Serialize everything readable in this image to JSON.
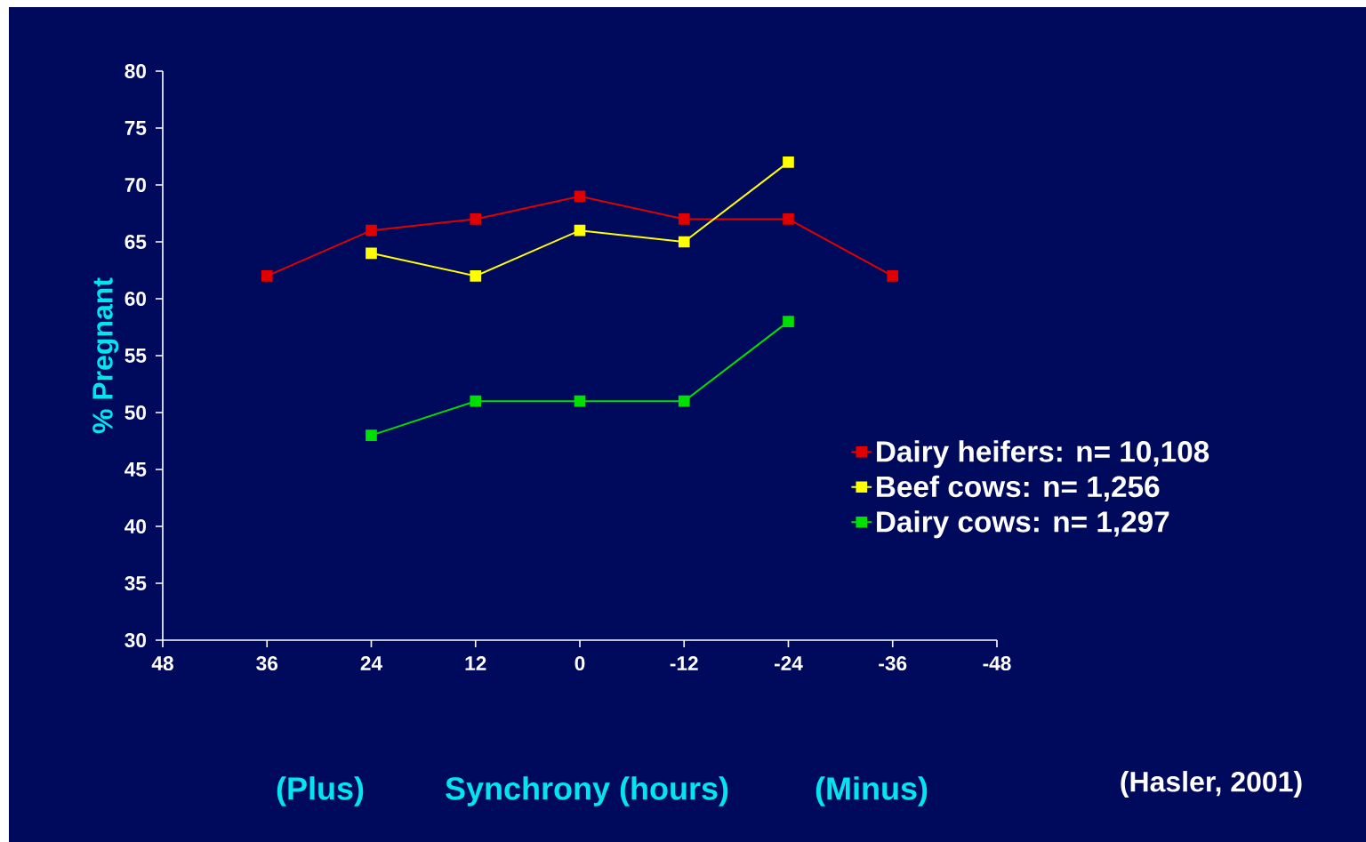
{
  "chart_data": {
    "type": "line",
    "xlabel": "Synchrony (hours)",
    "ylabel": "% Pregnant",
    "annotations": [
      "(Plus)",
      "(Minus)",
      "(Hasler, 2001)"
    ],
    "xlim": [
      48,
      -48
    ],
    "xticks": [
      48,
      36,
      24,
      12,
      0,
      -12,
      -24,
      -36,
      -48
    ],
    "ylim": [
      30,
      80
    ],
    "yticks": [
      30,
      35,
      40,
      45,
      50,
      55,
      60,
      65,
      70,
      75,
      80
    ],
    "grid": false,
    "legend": "right",
    "marker": "square",
    "line_style": "solid",
    "series": [
      {
        "name": "Dairy heifers: n= 10,108",
        "color": "#e00000",
        "x": [
          36,
          24,
          12,
          0,
          -12,
          -24,
          -36
        ],
        "values": [
          62,
          66,
          67,
          69,
          67,
          67,
          62
        ]
      },
      {
        "name": "Beef cows: n= 1,256",
        "color": "#ffff00",
        "x": [
          24,
          12,
          0,
          -12,
          -24
        ],
        "values": [
          64,
          62,
          66,
          65,
          72
        ]
      },
      {
        "name": "Dairy cows: n= 1,297",
        "color": "#00e000",
        "x": [
          24,
          12,
          0,
          -12,
          -24
        ],
        "values": [
          48,
          51,
          51,
          51,
          58
        ]
      }
    ]
  }
}
